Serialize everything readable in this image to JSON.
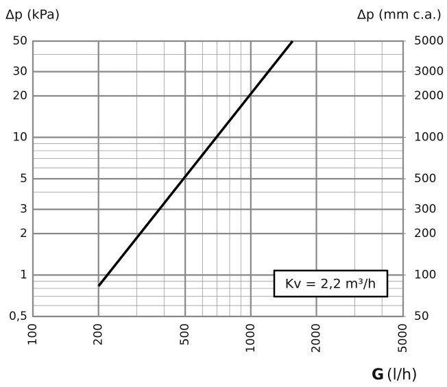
{
  "chart_data": {
    "type": "line",
    "y_label": "Δp (kPa)",
    "y2_label": "Δp (mm c.a.)",
    "x_label": {
      "symbol": "G",
      "unit": "(l/h)"
    },
    "annotation": "Kv = 2,2 m³/h",
    "log_x": true,
    "log_y": true,
    "grid": true,
    "x": [
      200,
      1555
    ],
    "series": [
      {
        "color": "#000000",
        "values": [
          0.83,
          50
        ]
      }
    ],
    "xlim": [
      100,
      5000
    ],
    "xticks": [
      100,
      200,
      500,
      1000,
      2000,
      5000
    ],
    "minor_xticks": [
      300,
      400,
      600,
      700,
      800,
      900,
      3000,
      4000
    ],
    "ylim": [
      0.5,
      50
    ],
    "yticks": [
      {
        "value": 0.5,
        "label": "0,5"
      },
      1,
      2,
      3,
      5,
      10,
      20,
      30,
      50
    ],
    "minor_yticks": [
      0.6,
      0.7,
      0.8,
      0.9,
      4,
      6,
      7,
      8,
      9,
      40
    ],
    "y2lim": [
      50,
      5000
    ],
    "y2ticks": [
      50,
      100,
      200,
      300,
      500,
      1000,
      2000,
      3000,
      5000
    ]
  }
}
